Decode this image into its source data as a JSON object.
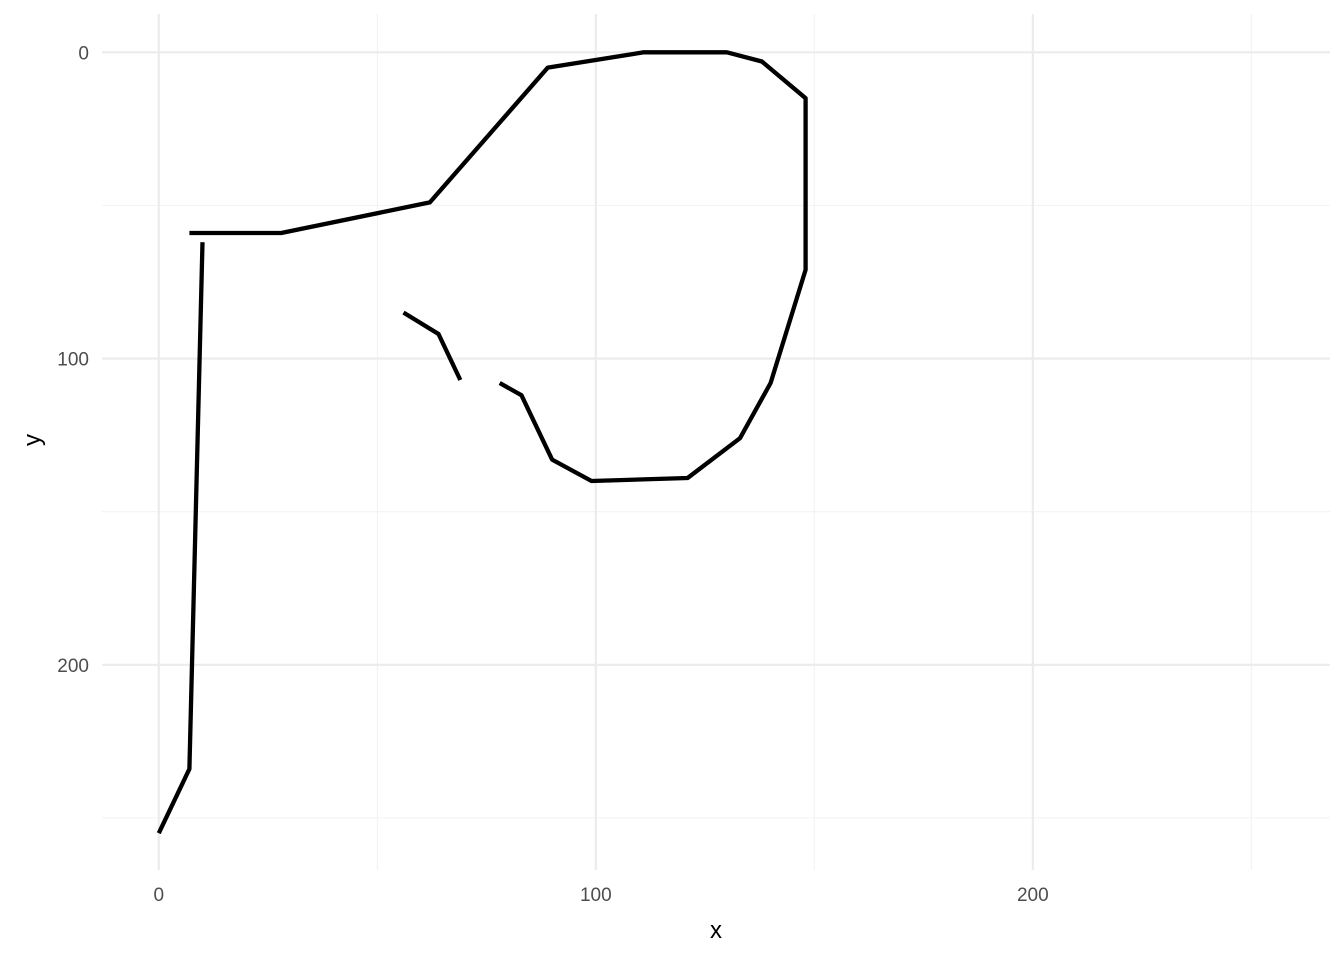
{
  "chart_data": {
    "type": "line",
    "title": "",
    "xlabel": "x",
    "ylabel": "y",
    "xlim": [
      -13,
      268
    ],
    "ylim": [
      -12.5,
      267
    ],
    "y_reversed": true,
    "grid": true,
    "x_ticks": [
      0,
      100,
      200
    ],
    "x_tick_labels": [
      "0",
      "100",
      "200"
    ],
    "x_minor": [
      50,
      150,
      250
    ],
    "y_ticks": [
      0,
      100,
      200
    ],
    "y_tick_labels": [
      "0",
      "100",
      "200"
    ],
    "y_minor": [
      50,
      150,
      250
    ],
    "line_color": "#000000",
    "series": [
      {
        "points": [
          [
            0,
            255
          ],
          [
            7,
            234
          ],
          [
            10,
            62
          ]
        ]
      },
      {
        "points": [
          [
            7,
            59
          ],
          [
            28,
            59
          ],
          [
            62,
            49
          ],
          [
            89,
            5
          ],
          [
            111,
            0
          ],
          [
            130,
            0
          ],
          [
            138,
            3
          ],
          [
            148,
            15
          ],
          [
            148,
            71
          ],
          [
            140,
            108
          ],
          [
            133,
            126
          ],
          [
            121,
            139
          ],
          [
            99,
            140
          ],
          [
            90,
            133
          ],
          [
            83,
            112
          ],
          [
            78,
            108
          ]
        ]
      },
      {
        "points": [
          [
            69,
            107
          ],
          [
            64,
            92
          ],
          [
            56,
            85
          ]
        ]
      }
    ]
  }
}
